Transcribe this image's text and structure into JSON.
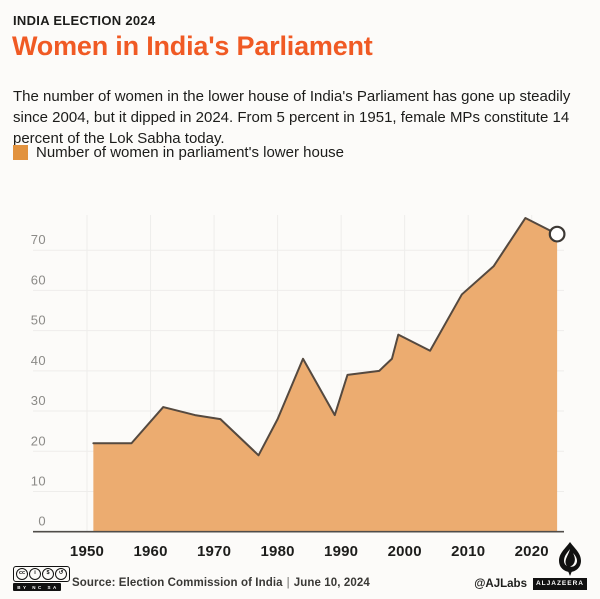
{
  "header": {
    "eyebrow": "INDIA ELECTION 2024",
    "title": "Women in India's Parliament",
    "description": "The number of women in the lower house of India's Parliament has gone up steadily since 2004, but it dipped in 2024. From 5 percent in 1951, female MPs constitute 14 percent of the Lok Sabha today."
  },
  "legend": {
    "label": "Number of women in parliament's lower house",
    "swatch_color": "#e2923e"
  },
  "chart_data": {
    "type": "area",
    "title": "Number of women in parliament's lower house",
    "x": [
      1951,
      1957,
      1962,
      1967,
      1971,
      1977,
      1980,
      1984,
      1989,
      1991,
      1996,
      1998,
      1999,
      2004,
      2009,
      2014,
      2019,
      2024
    ],
    "values": [
      22,
      22,
      31,
      29,
      28,
      19,
      28,
      43,
      29,
      39,
      40,
      43,
      49,
      45,
      59,
      66,
      78,
      74
    ],
    "xticks": [
      1950,
      1960,
      1970,
      1980,
      1990,
      2000,
      2010,
      2020
    ],
    "yticks": [
      0,
      10,
      20,
      30,
      40,
      50,
      60,
      70
    ],
    "xlim": [
      1941.5,
      2025
    ],
    "ylim": [
      0,
      80
    ],
    "grid": "on",
    "legend_position": "top-left-above-chart",
    "area_color": "#ecac70",
    "line_color": "#55493f",
    "grid_color": "#eeedeb",
    "axis_color": "#4f4c49",
    "end_marker": {
      "x": 2024,
      "y": 74,
      "fill": "#ffffff",
      "stroke": "#3d3935"
    }
  },
  "accent_colors": {
    "title_orange": "#f05a24",
    "legend_orange": "#e2923e",
    "area_orange": "#ecac70"
  },
  "footer": {
    "cc_glyphs": [
      "cc",
      "i",
      "$",
      "↺"
    ],
    "cc_terms": "BY NC SA",
    "source": "Source: Election Commission of India",
    "separator": "|",
    "date": "June 10, 2024",
    "credit": "@AJLabs",
    "brand": "ALJAZEERA"
  }
}
